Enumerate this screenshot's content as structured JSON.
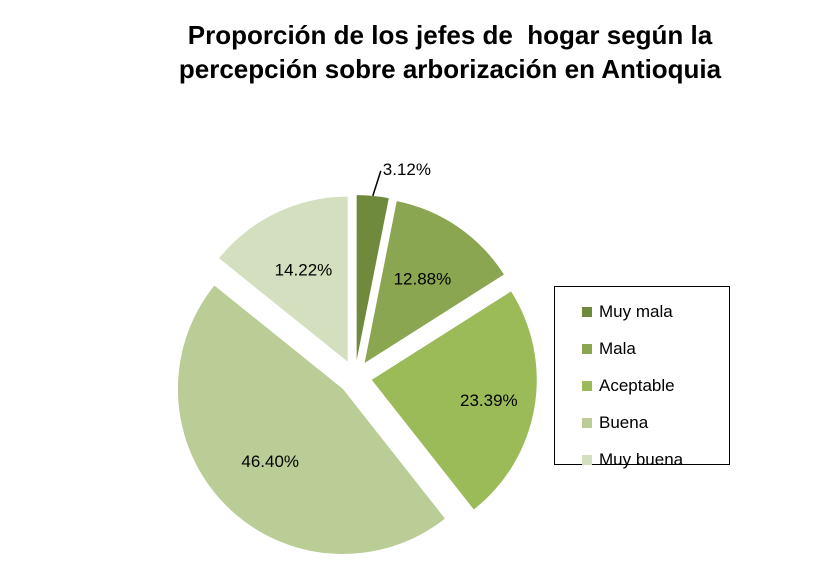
{
  "chart_data": {
    "type": "pie",
    "title": "Proporción de los jefes de  hogar según la percepción sobre arborización en Antioquia",
    "title_lines": [
      "Proporción de los jefes de  hogar según la",
      "percepción sobre arborización en Antioquia"
    ],
    "categories": [
      "Muy mala",
      "Mala",
      "Aceptable",
      "Buena",
      "Muy buena"
    ],
    "values": [
      3.12,
      12.88,
      23.39,
      46.4,
      14.22
    ],
    "data_labels": [
      "3.12%",
      "12.88%",
      "23.39%",
      "46.40%",
      "14.22%"
    ],
    "colors": [
      "#6f8a3d",
      "#8aa651",
      "#9bbb59",
      "#bacd96",
      "#d3dfbf"
    ],
    "exploded": true,
    "legend_position": "right"
  }
}
